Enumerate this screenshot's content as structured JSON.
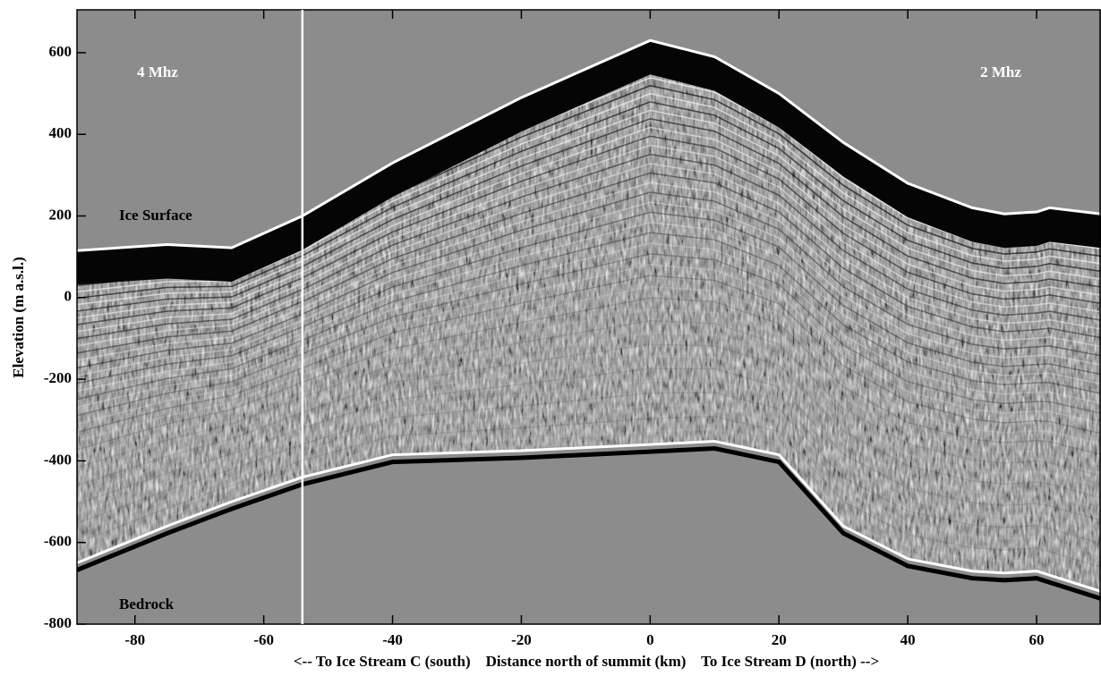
{
  "chart_data": {
    "type": "radargram",
    "xlabel": "<-- To Ice Stream C (south)    Distance north of summit (km)    To Ice Stream D (north) -->",
    "ylabel": "Elevation (m a.s.l.)",
    "x": [
      -89,
      -75,
      -65,
      -54,
      -40,
      -20,
      0,
      10,
      20,
      30,
      40,
      50,
      55,
      60,
      62,
      70
    ],
    "series": [
      {
        "name": "Ice Surface",
        "color": "#ffffff",
        "values": [
          115,
          130,
          122,
          200,
          330,
          490,
          630,
          590,
          500,
          380,
          280,
          220,
          205,
          210,
          220,
          205
        ]
      },
      {
        "name": "Bedrock",
        "color": "#ffffff",
        "values": [
          -650,
          -560,
          -500,
          -440,
          -385,
          -375,
          -360,
          -352,
          -385,
          -560,
          -640,
          -670,
          -675,
          -670,
          -680,
          -720
        ]
      }
    ],
    "annotations": [
      "4 Mhz",
      "2 Mhz"
    ],
    "marker_x": -54,
    "xlim": [
      -89,
      70
    ],
    "ylim": [
      -800,
      705
    ],
    "xticks": [
      -80,
      -60,
      -40,
      -20,
      0,
      20,
      40,
      60
    ],
    "yticks": [
      -800,
      -600,
      -400,
      -200,
      0,
      200,
      400,
      600
    ],
    "grid": false
  }
}
